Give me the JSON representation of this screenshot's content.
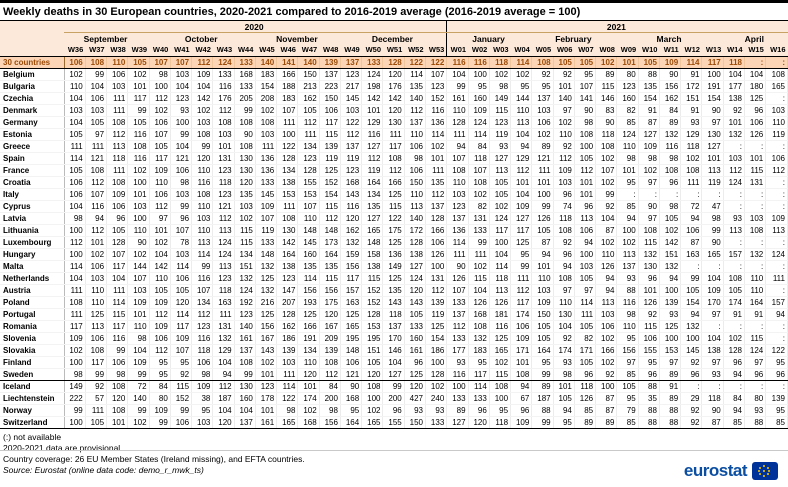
{
  "title": "Weekly deaths in 30 European countries, 2020-2021 compared to 2016-2019 average (2016-2019 average = 100)",
  "colors": {
    "header_bg": "#FDE9D9",
    "total_row_bg": "#FBD5B5",
    "total_row_text": "#9C4A06",
    "eurostat_blue": "#0B4EA2",
    "flag_blue": "#003399",
    "flag_star_yellow": "#FFCC00"
  },
  "footer": {
    "notes": [
      "(:) not available",
      "2020-2021 data are provisional",
      "Country coverage: 26 EU Member States (Ireland missing), and EFTA countries.",
      "Source: Eurostat (online data code: demo_r_mwk_ts)"
    ]
  },
  "logo": {
    "text": "eurostat",
    "flag_icon": "eu-flag-icon"
  },
  "chart_data": {
    "type": "table",
    "title": "Weekly deaths in 30 European countries, 2020-2021 compared to 2016-2019 average (2016-2019 average = 100)",
    "missing_symbol": ":",
    "years": [
      {
        "label": "2020",
        "span": 18
      },
      {
        "label": "2021",
        "span": 16
      }
    ],
    "months": [
      {
        "label": "September",
        "span": 4
      },
      {
        "label": "October",
        "span": 5
      },
      {
        "label": "November",
        "span": 4
      },
      {
        "label": "December",
        "span": 5
      },
      {
        "label": "January",
        "span": 4
      },
      {
        "label": "February",
        "span": 4
      },
      {
        "label": "March",
        "span": 5
      },
      {
        "label": "April",
        "span": 3
      }
    ],
    "weeks": [
      "W36",
      "W37",
      "W38",
      "W39",
      "W40",
      "W41",
      "W42",
      "W43",
      "W44",
      "W45",
      "W46",
      "W47",
      "W48",
      "W49",
      "W50",
      "W51",
      "W52",
      "W53",
      "W01",
      "W02",
      "W03",
      "W04",
      "W05",
      "W06",
      "W07",
      "W08",
      "W09",
      "W10",
      "W11",
      "W12",
      "W13",
      "W14",
      "W15",
      "W16"
    ],
    "rows": [
      {
        "name": "30 countries",
        "total": true,
        "values": [
          106,
          108,
          110,
          105,
          107,
          107,
          112,
          124,
          133,
          140,
          141,
          140,
          139,
          137,
          133,
          128,
          122,
          122,
          116,
          116,
          118,
          114,
          108,
          105,
          105,
          102,
          101,
          105,
          109,
          114,
          117,
          118,
          ":",
          ":"
        ]
      },
      {
        "name": "Belgium",
        "values": [
          102,
          99,
          106,
          102,
          98,
          103,
          109,
          133,
          168,
          183,
          166,
          150,
          137,
          123,
          124,
          120,
          114,
          107,
          104,
          100,
          102,
          102,
          92,
          92,
          95,
          89,
          80,
          88,
          90,
          91,
          100,
          104,
          104,
          108
        ]
      },
      {
        "name": "Bulgaria",
        "values": [
          110,
          104,
          103,
          101,
          100,
          104,
          104,
          116,
          133,
          154,
          188,
          213,
          223,
          217,
          198,
          176,
          135,
          123,
          99,
          95,
          98,
          95,
          95,
          101,
          107,
          115,
          123,
          135,
          156,
          172,
          191,
          177,
          180,
          165
        ]
      },
      {
        "name": "Czechia",
        "values": [
          104,
          106,
          111,
          117,
          112,
          123,
          142,
          176,
          205,
          208,
          183,
          162,
          150,
          145,
          142,
          142,
          140,
          152,
          161,
          160,
          149,
          144,
          137,
          140,
          141,
          146,
          160,
          154,
          162,
          151,
          154,
          138,
          125,
          ":"
        ]
      },
      {
        "name": "Denmark",
        "values": [
          103,
          103,
          111,
          99,
          102,
          93,
          102,
          112,
          99,
          102,
          107,
          105,
          106,
          103,
          101,
          120,
          112,
          116,
          110,
          109,
          115,
          110,
          103,
          97,
          90,
          83,
          82,
          91,
          84,
          91,
          90,
          92,
          96,
          103
        ]
      },
      {
        "name": "Germany",
        "values": [
          104,
          105,
          108,
          105,
          106,
          100,
          103,
          108,
          108,
          108,
          111,
          112,
          117,
          122,
          129,
          130,
          137,
          136,
          128,
          124,
          123,
          113,
          106,
          102,
          98,
          90,
          85,
          87,
          89,
          93,
          97,
          101,
          106,
          110
        ]
      },
      {
        "name": "Estonia",
        "values": [
          105,
          97,
          112,
          116,
          107,
          99,
          108,
          103,
          90,
          103,
          100,
          111,
          115,
          112,
          116,
          111,
          110,
          114,
          111,
          114,
          119,
          104,
          102,
          110,
          108,
          118,
          124,
          127,
          132,
          129,
          130,
          132,
          126,
          119
        ]
      },
      {
        "name": "Greece",
        "values": [
          111,
          111,
          113,
          108,
          105,
          104,
          99,
          101,
          108,
          111,
          122,
          134,
          139,
          137,
          127,
          117,
          106,
          102,
          94,
          84,
          93,
          94,
          89,
          92,
          100,
          108,
          110,
          109,
          116,
          118,
          127,
          ":",
          ":",
          ":"
        ]
      },
      {
        "name": "Spain",
        "values": [
          114,
          121,
          118,
          116,
          117,
          121,
          120,
          131,
          130,
          136,
          128,
          123,
          119,
          119,
          112,
          108,
          98,
          101,
          107,
          118,
          127,
          129,
          121,
          112,
          105,
          102,
          98,
          98,
          98,
          102,
          101,
          103,
          101,
          106
        ]
      },
      {
        "name": "France",
        "values": [
          105,
          108,
          111,
          102,
          109,
          106,
          110,
          123,
          130,
          136,
          134,
          128,
          125,
          123,
          119,
          112,
          106,
          111,
          108,
          107,
          113,
          112,
          111,
          109,
          112,
          107,
          101,
          102,
          108,
          108,
          113,
          112,
          115,
          112
        ]
      },
      {
        "name": "Croatia",
        "values": [
          106,
          112,
          108,
          100,
          110,
          98,
          116,
          118,
          120,
          133,
          138,
          155,
          152,
          168,
          164,
          166,
          150,
          135,
          110,
          108,
          105,
          101,
          101,
          103,
          101,
          102,
          95,
          97,
          96,
          111,
          119,
          124,
          131,
          ":"
        ]
      },
      {
        "name": "Italy",
        "values": [
          106,
          107,
          109,
          101,
          106,
          103,
          108,
          123,
          135,
          145,
          153,
          153,
          154,
          143,
          134,
          125,
          110,
          112,
          103,
          102,
          105,
          104,
          100,
          96,
          101,
          99,
          ":",
          ":",
          ":",
          ":",
          ":",
          ":",
          ":",
          ":"
        ]
      },
      {
        "name": "Cyprus",
        "values": [
          104,
          116,
          106,
          103,
          112,
          99,
          110,
          121,
          103,
          109,
          111,
          107,
          115,
          116,
          135,
          115,
          113,
          137,
          123,
          82,
          102,
          109,
          99,
          74,
          96,
          92,
          85,
          90,
          98,
          72,
          47,
          ":",
          ":",
          ":"
        ]
      },
      {
        "name": "Latvia",
        "values": [
          98,
          94,
          96,
          100,
          97,
          96,
          103,
          112,
          102,
          107,
          108,
          110,
          112,
          120,
          127,
          122,
          140,
          128,
          137,
          131,
          124,
          127,
          126,
          118,
          113,
          104,
          94,
          97,
          105,
          94,
          98,
          93,
          103,
          109
        ]
      },
      {
        "name": "Lithuania",
        "values": [
          100,
          112,
          105,
          110,
          101,
          107,
          110,
          113,
          115,
          119,
          130,
          148,
          148,
          162,
          165,
          175,
          172,
          166,
          136,
          133,
          117,
          117,
          105,
          108,
          106,
          87,
          100,
          108,
          102,
          106,
          99,
          113,
          108,
          113
        ]
      },
      {
        "name": "Luxembourg",
        "values": [
          112,
          101,
          128,
          90,
          102,
          78,
          113,
          124,
          115,
          133,
          142,
          145,
          173,
          132,
          148,
          125,
          128,
          106,
          114,
          99,
          100,
          125,
          87,
          92,
          94,
          102,
          102,
          115,
          142,
          87,
          90,
          ":",
          ":",
          ":"
        ]
      },
      {
        "name": "Hungary",
        "values": [
          100,
          102,
          107,
          102,
          104,
          103,
          114,
          124,
          134,
          148,
          164,
          160,
          164,
          159,
          158,
          136,
          138,
          126,
          111,
          111,
          104,
          95,
          94,
          96,
          100,
          110,
          113,
          132,
          151,
          163,
          165,
          157,
          132,
          124
        ]
      },
      {
        "name": "Malta",
        "values": [
          114,
          106,
          117,
          144,
          142,
          114,
          99,
          113,
          151,
          132,
          138,
          135,
          135,
          156,
          138,
          149,
          127,
          100,
          90,
          102,
          114,
          99,
          101,
          94,
          103,
          126,
          137,
          130,
          132,
          ":",
          ":",
          ":",
          ":",
          ":"
        ]
      },
      {
        "name": "Netherlands",
        "values": [
          104,
          103,
          104,
          107,
          110,
          106,
          116,
          123,
          132,
          125,
          123,
          114,
          115,
          117,
          115,
          125,
          124,
          131,
          126,
          115,
          118,
          111,
          110,
          108,
          105,
          94,
          93,
          96,
          94,
          99,
          104,
          108,
          110,
          111
        ]
      },
      {
        "name": "Austria",
        "values": [
          111,
          110,
          111,
          103,
          105,
          105,
          107,
          118,
          124,
          132,
          147,
          156,
          156,
          157,
          152,
          135,
          120,
          112,
          107,
          104,
          113,
          112,
          103,
          97,
          97,
          94,
          88,
          101,
          100,
          105,
          109,
          105,
          110,
          ":"
        ]
      },
      {
        "name": "Poland",
        "values": [
          108,
          110,
          114,
          109,
          109,
          120,
          134,
          163,
          192,
          216,
          207,
          193,
          175,
          163,
          152,
          143,
          143,
          139,
          133,
          126,
          126,
          117,
          109,
          110,
          114,
          113,
          116,
          126,
          139,
          154,
          170,
          174,
          164,
          157
        ]
      },
      {
        "name": "Portugal",
        "values": [
          111,
          125,
          115,
          101,
          112,
          114,
          112,
          111,
          123,
          125,
          128,
          125,
          120,
          125,
          128,
          118,
          105,
          119,
          137,
          168,
          181,
          174,
          150,
          130,
          111,
          103,
          98,
          92,
          93,
          94,
          97,
          91,
          91,
          94
        ]
      },
      {
        "name": "Romania",
        "values": [
          117,
          113,
          117,
          110,
          109,
          117,
          123,
          131,
          140,
          156,
          162,
          166,
          167,
          165,
          153,
          137,
          133,
          125,
          112,
          108,
          116,
          106,
          105,
          104,
          105,
          106,
          110,
          115,
          125,
          132,
          ":",
          ":",
          ":",
          ":"
        ]
      },
      {
        "name": "Slovenia",
        "values": [
          109,
          106,
          116,
          98,
          106,
          109,
          116,
          132,
          161,
          167,
          186,
          191,
          209,
          195,
          195,
          170,
          160,
          154,
          133,
          132,
          125,
          109,
          105,
          92,
          82,
          102,
          95,
          106,
          100,
          100,
          104,
          102,
          115,
          ":"
        ]
      },
      {
        "name": "Slovakia",
        "values": [
          102,
          108,
          99,
          104,
          112,
          107,
          118,
          129,
          137,
          143,
          139,
          134,
          139,
          148,
          151,
          146,
          161,
          186,
          177,
          183,
          165,
          171,
          164,
          174,
          171,
          166,
          156,
          155,
          153,
          145,
          138,
          128,
          124,
          122
        ]
      },
      {
        "name": "Finland",
        "values": [
          100,
          117,
          106,
          109,
          95,
          95,
          106,
          104,
          108,
          102,
          103,
          110,
          108,
          106,
          105,
          104,
          96,
          100,
          93,
          95,
          102,
          101,
          95,
          93,
          105,
          102,
          97,
          95,
          97,
          92,
          97,
          96,
          97,
          95
        ]
      },
      {
        "name": "Sweden",
        "efta_sep": true,
        "values": [
          98,
          99,
          98,
          99,
          95,
          92,
          98,
          94,
          99,
          101,
          111,
          120,
          112,
          121,
          120,
          127,
          125,
          128,
          116,
          117,
          115,
          108,
          99,
          98,
          96,
          92,
          85,
          96,
          89,
          96,
          93,
          94,
          96,
          96
        ]
      },
      {
        "name": "Iceland",
        "values": [
          149,
          92,
          108,
          72,
          84,
          115,
          109,
          112,
          130,
          123,
          114,
          101,
          84,
          90,
          108,
          99,
          120,
          102,
          100,
          114,
          108,
          94,
          89,
          101,
          118,
          100,
          105,
          88,
          91,
          ":",
          ":",
          ":",
          ":",
          ":"
        ]
      },
      {
        "name": "Liechtenstein",
        "values": [
          222,
          57,
          120,
          140,
          80,
          152,
          38,
          187,
          160,
          178,
          122,
          174,
          200,
          168,
          100,
          200,
          427,
          240,
          133,
          133,
          100,
          67,
          187,
          105,
          126,
          87,
          95,
          35,
          89,
          29,
          118,
          84,
          80,
          139
        ]
      },
      {
        "name": "Norway",
        "values": [
          99,
          111,
          108,
          99,
          109,
          99,
          95,
          104,
          104,
          101,
          98,
          102,
          98,
          95,
          102,
          96,
          93,
          93,
          89,
          96,
          95,
          96,
          88,
          94,
          85,
          87,
          79,
          88,
          88,
          92,
          90,
          94,
          93,
          95
        ]
      },
      {
        "name": "Switzerland",
        "values": [
          100,
          105,
          101,
          102,
          99,
          106,
          103,
          120,
          137,
          161,
          165,
          168,
          156,
          164,
          165,
          155,
          150,
          133,
          127,
          120,
          118,
          109,
          99,
          95,
          89,
          89,
          85,
          88,
          88,
          92,
          87,
          85,
          88,
          85
        ]
      }
    ]
  }
}
